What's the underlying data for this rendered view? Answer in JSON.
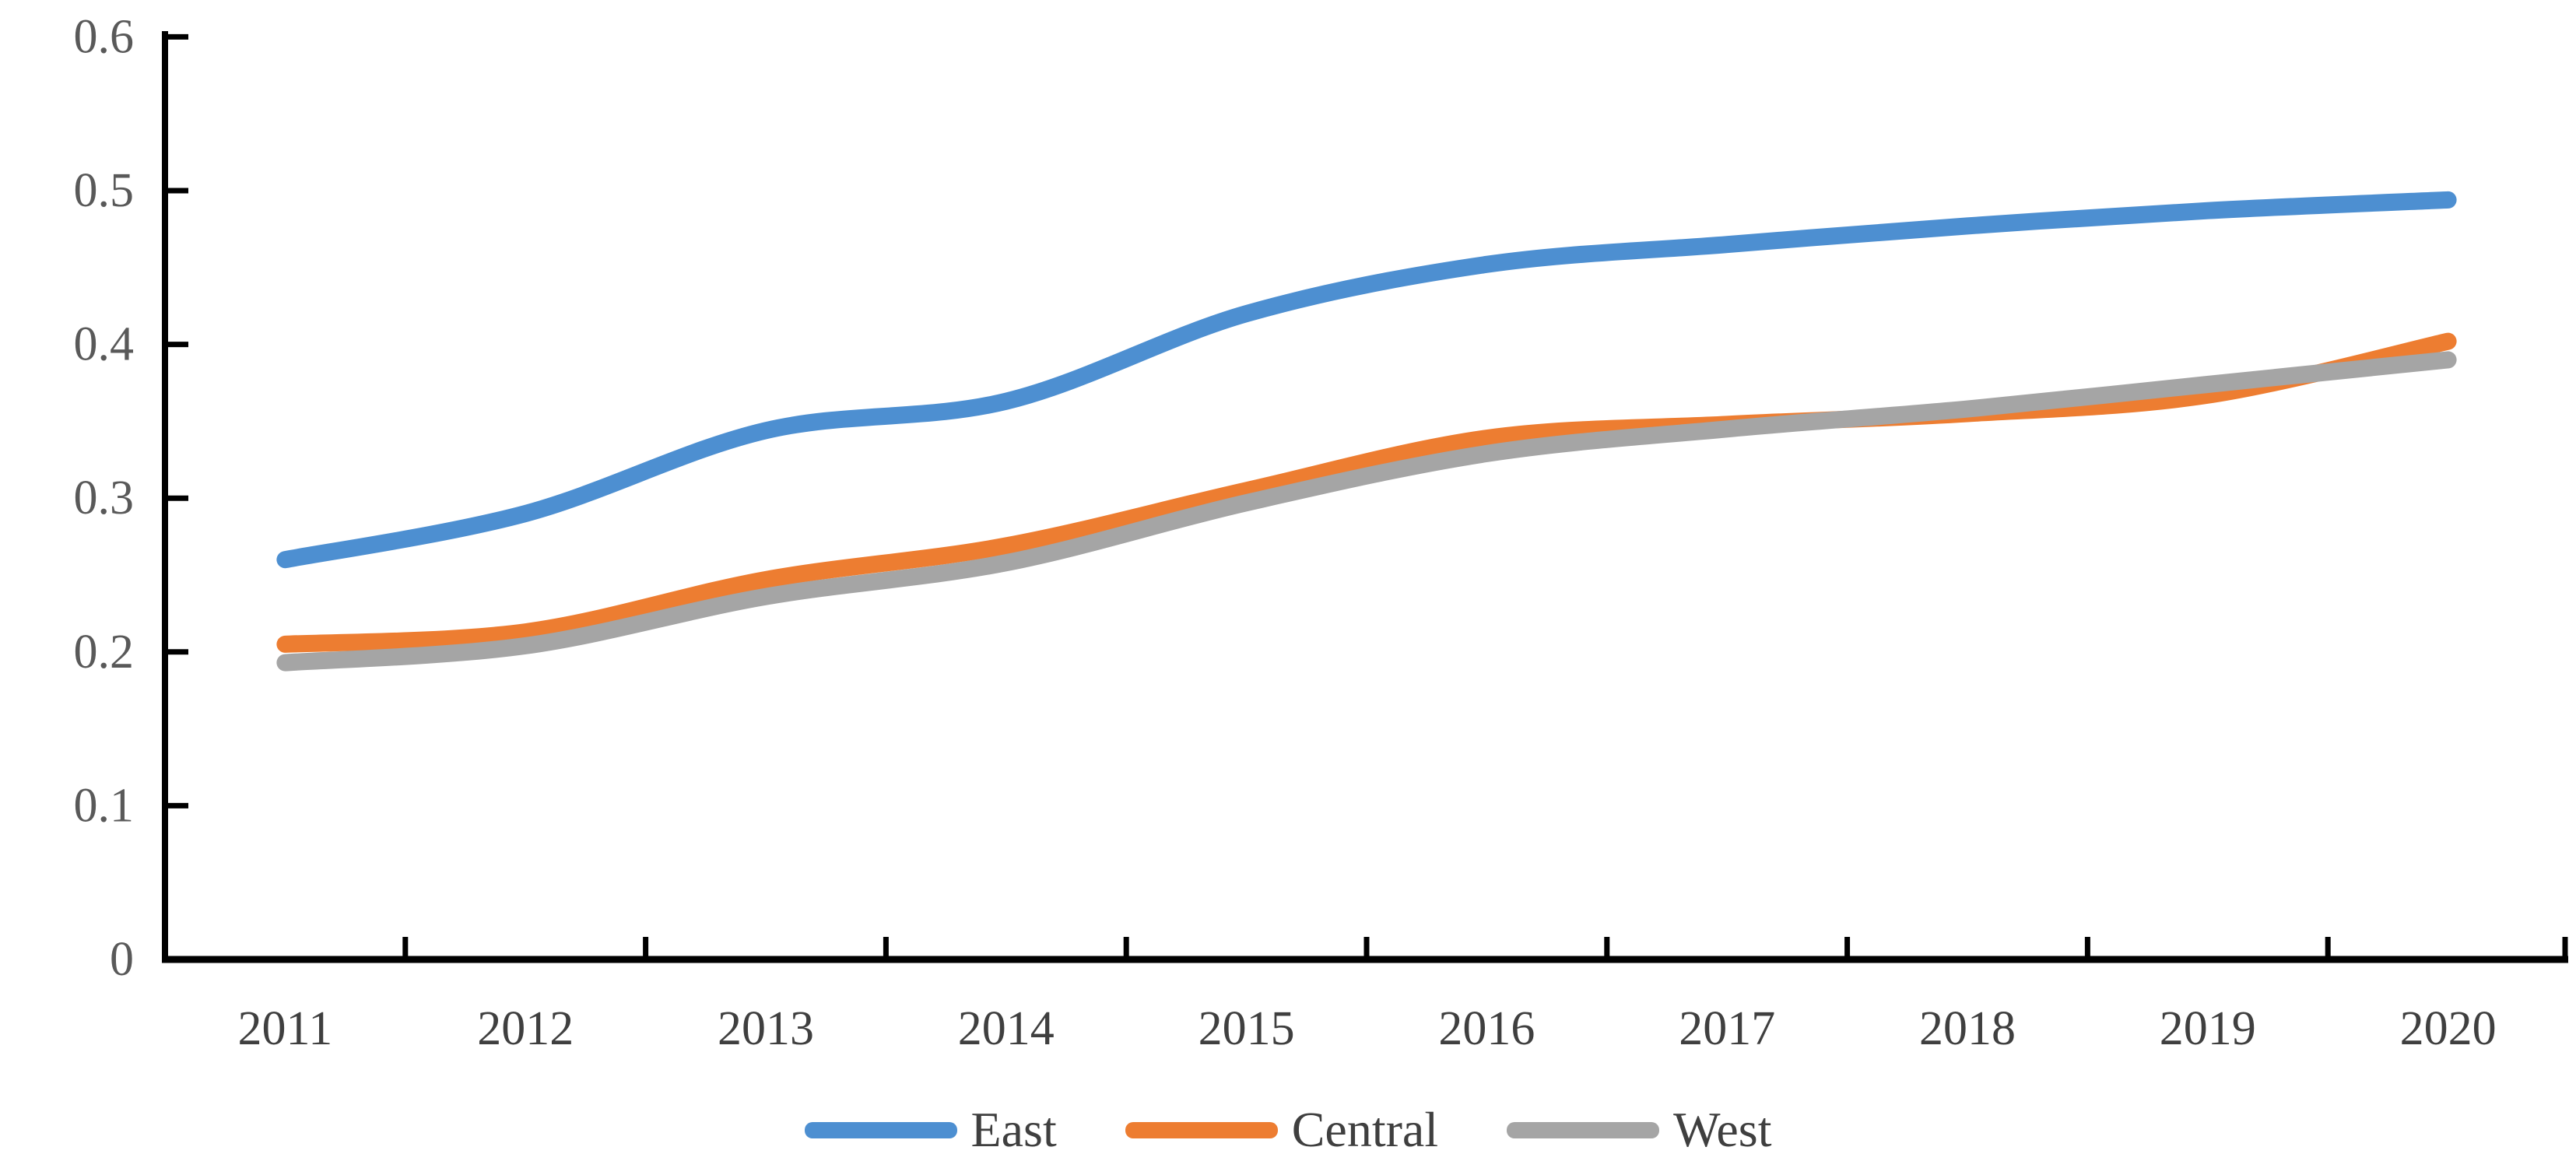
{
  "chart_data": {
    "type": "line",
    "title": "",
    "xlabel": "",
    "ylabel": "",
    "categories": [
      "2011",
      "2012",
      "2013",
      "2014",
      "2015",
      "2016",
      "2017",
      "2018",
      "2019",
      "2020"
    ],
    "series": [
      {
        "name": "East",
        "color": "#4D8FD1",
        "values": [
          0.26,
          0.29,
          0.344,
          0.363,
          0.42,
          0.452,
          0.465,
          0.477,
          0.487,
          0.494
        ]
      },
      {
        "name": "Central",
        "color": "#ED7D31",
        "values": [
          0.205,
          0.213,
          0.247,
          0.269,
          0.305,
          0.339,
          0.348,
          0.355,
          0.367,
          0.402
        ]
      },
      {
        "name": "West",
        "color": "#A5A5A5",
        "values": [
          0.193,
          0.204,
          0.236,
          0.258,
          0.297,
          0.329,
          0.345,
          0.358,
          0.374,
          0.39
        ]
      }
    ],
    "ylim": [
      0,
      0.6
    ],
    "ytick_labels": [
      "0",
      "0.1",
      "0.2",
      "0.3",
      "0.4",
      "0.5",
      "0.6"
    ],
    "grid": false,
    "smooth_lines": true,
    "legend_position": "bottom",
    "axis_color": "#000000",
    "ytick_label_color": "#595959",
    "xtick_label_color": "#3f3f3f"
  }
}
